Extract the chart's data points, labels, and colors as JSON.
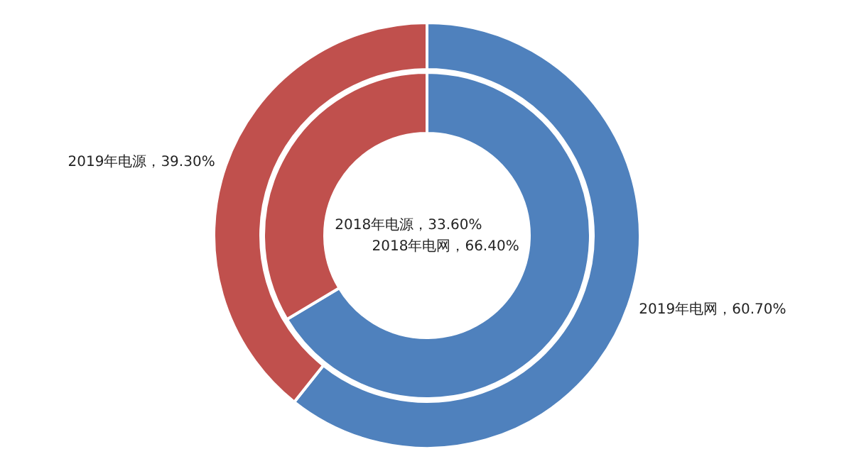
{
  "chart_data": {
    "type": "donut",
    "colors": [
      "#4f81bd",
      "#c0504d"
    ],
    "series": [
      {
        "values": [
          66.4,
          33.6
        ],
        "value_labels": [
          "2018年电网，66.40%",
          "2018年电源，33.60%"
        ]
      },
      {
        "values": [
          60.7,
          39.3
        ],
        "value_labels": [
          "2019年电网，60.70%",
          "2019年电源，39.30%"
        ]
      }
    ]
  }
}
